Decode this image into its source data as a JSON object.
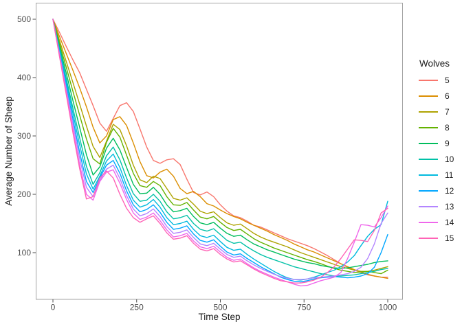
{
  "figure": {
    "background": "#FFFFFF",
    "panel_border_color": "#A3A3A3",
    "tick_color": "#4D4D4D",
    "tick_label_color": "#4D4D4D",
    "axis_title_color": "#1A1A1A",
    "legend_text_color": "#1A1A1A"
  },
  "chart_data": {
    "type": "line",
    "title": "",
    "xlabel": "Time Step",
    "ylabel": "Average Number of Sheep",
    "xlim": [
      -25,
      1045
    ],
    "ylim": [
      20,
      528
    ],
    "xticks": [
      0,
      250,
      500,
      750,
      1000
    ],
    "yticks": [
      100,
      200,
      300,
      400,
      500
    ],
    "grid": false,
    "legend_position": "right",
    "legend_title": "Wolves",
    "x_start": 0,
    "x_step": 20,
    "series": [
      {
        "name": "5",
        "color": "#F8766D",
        "values": [
          500,
          477,
          453,
          430,
          408,
          380,
          352,
          322,
          308,
          330,
          352,
          357,
          342,
          312,
          281,
          258,
          253,
          259,
          261,
          251,
          226,
          203,
          199,
          204,
          196,
          182,
          171,
          163,
          160,
          154,
          147,
          144,
          139,
          134,
          129,
          124,
          120,
          116,
          112,
          107,
          101,
          95,
          88,
          81,
          75,
          70,
          66,
          62,
          60,
          58,
          58
        ]
      },
      {
        "name": "6",
        "color": "#DB8E00",
        "values": [
          500,
          470,
          441,
          412,
          382,
          350,
          315,
          288,
          300,
          328,
          333,
          318,
          288,
          256,
          232,
          228,
          238,
          243,
          231,
          210,
          201,
          205,
          196,
          184,
          180,
          173,
          167,
          162,
          158,
          152,
          147,
          142,
          137,
          131,
          126,
          121,
          115,
          110,
          105,
          101,
          96,
          91,
          86,
          81,
          76,
          71,
          67,
          63,
          60,
          58,
          56
        ]
      },
      {
        "name": "7",
        "color": "#AEA200",
        "values": [
          500,
          463,
          427,
          391,
          354,
          317,
          282,
          263,
          291,
          320,
          311,
          283,
          250,
          225,
          220,
          231,
          227,
          210,
          193,
          190,
          194,
          183,
          171,
          167,
          170,
          160,
          151,
          147,
          149,
          141,
          133,
          127,
          122,
          118,
          114,
          110,
          105,
          100,
          96,
          92,
          88,
          84,
          80,
          76,
          73,
          70,
          68,
          68,
          70,
          73,
          76
        ]
      },
      {
        "name": "8",
        "color": "#64B200",
        "values": [
          500,
          458,
          417,
          376,
          335,
          295,
          261,
          252,
          289,
          313,
          298,
          267,
          236,
          215,
          212,
          222,
          215,
          196,
          182,
          181,
          186,
          173,
          161,
          158,
          162,
          152,
          143,
          138,
          140,
          132,
          124,
          118,
          113,
          108,
          104,
          100,
          96,
          92,
          88,
          85,
          81,
          77,
          73,
          70,
          68,
          66,
          67,
          68,
          66,
          64,
          70
        ]
      },
      {
        "name": "9",
        "color": "#00BD5C",
        "values": [
          500,
          453,
          407,
          360,
          314,
          268,
          233,
          247,
          279,
          296,
          276,
          246,
          217,
          201,
          202,
          212,
          200,
          182,
          170,
          172,
          176,
          162,
          151,
          148,
          152,
          142,
          133,
          128,
          130,
          122,
          115,
          110,
          105,
          101,
          97,
          93,
          89,
          86,
          83,
          81,
          78,
          76,
          74,
          73,
          74,
          76,
          78,
          80,
          83,
          85,
          86
        ]
      },
      {
        "name": "10",
        "color": "#00C1A7",
        "values": [
          500,
          449,
          398,
          347,
          296,
          248,
          217,
          237,
          266,
          281,
          259,
          228,
          201,
          188,
          190,
          200,
          188,
          170,
          158,
          160,
          164,
          150,
          140,
          137,
          141,
          131,
          121,
          116,
          118,
          110,
          103,
          97,
          92,
          88,
          84,
          80,
          76,
          73,
          70,
          67,
          64,
          62,
          60,
          60,
          61,
          62,
          64,
          66,
          68,
          71,
          73
        ]
      },
      {
        "name": "11",
        "color": "#00BADE",
        "values": [
          500,
          446,
          392,
          338,
          284,
          235,
          209,
          231,
          257,
          269,
          246,
          215,
          190,
          178,
          182,
          191,
          178,
          160,
          148,
          150,
          154,
          140,
          129,
          126,
          130,
          119,
          109,
          104,
          106,
          97,
          89,
          82,
          75,
          68,
          62,
          57,
          54,
          53,
          55,
          58,
          62,
          66,
          70,
          76,
          84,
          95,
          112,
          128,
          140,
          148,
          188
        ]
      },
      {
        "name": "12",
        "color": "#00A6FF",
        "values": [
          500,
          442,
          385,
          328,
          271,
          222,
          203,
          228,
          250,
          258,
          236,
          206,
          182,
          170,
          174,
          182,
          169,
          152,
          140,
          142,
          146,
          132,
          121,
          118,
          122,
          111,
          101,
          96,
          98,
          90,
          83,
          76,
          70,
          64,
          58,
          54,
          51,
          50,
          52,
          55,
          57,
          58,
          59,
          58,
          57,
          58,
          60,
          64,
          75,
          100,
          131
        ]
      },
      {
        "name": "13",
        "color": "#B385FF",
        "values": [
          500,
          440,
          380,
          320,
          261,
          212,
          196,
          224,
          243,
          250,
          227,
          198,
          175,
          163,
          167,
          175,
          162,
          145,
          133,
          135,
          139,
          126,
          115,
          112,
          116,
          106,
          97,
          92,
          94,
          86,
          79,
          73,
          68,
          63,
          59,
          56,
          54,
          54,
          55,
          57,
          58,
          59,
          60,
          62,
          64,
          68,
          75,
          90,
          115,
          150,
          168
        ]
      },
      {
        "name": "14",
        "color": "#EF67EB",
        "values": [
          500,
          437,
          374,
          311,
          250,
          200,
          190,
          222,
          238,
          242,
          219,
          191,
          168,
          157,
          161,
          168,
          155,
          139,
          127,
          129,
          133,
          120,
          110,
          107,
          111,
          101,
          92,
          87,
          89,
          81,
          74,
          68,
          63,
          58,
          54,
          50,
          46,
          43,
          44,
          48,
          52,
          55,
          58,
          66,
          90,
          118,
          148,
          147,
          144,
          160,
          180
        ]
      },
      {
        "name": "15",
        "color": "#FF63B6",
        "values": [
          500,
          435,
          370,
          305,
          243,
          192,
          196,
          228,
          240,
          228,
          200,
          176,
          160,
          152,
          158,
          163,
          150,
          134,
          123,
          125,
          129,
          116,
          106,
          103,
          107,
          97,
          89,
          84,
          86,
          79,
          72,
          66,
          61,
          56,
          52,
          50,
          48,
          48,
          50,
          53,
          58,
          66,
          76,
          90,
          106,
          122,
          121,
          119,
          138,
          168,
          176
        ]
      }
    ]
  }
}
